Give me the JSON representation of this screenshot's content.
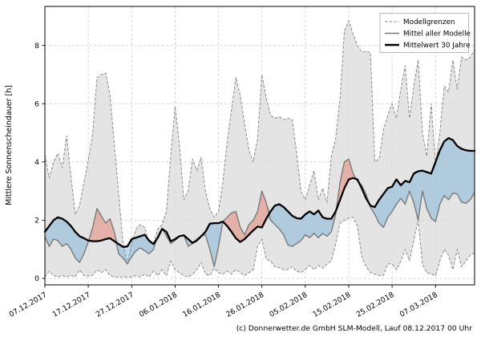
{
  "figure": {
    "footer": "(c) Donnerwetter.de GmbH SLM-Modell, Lauf 08.12.2017 00 Uhr",
    "background": "#ffffff"
  },
  "chart_data": {
    "type": "line",
    "title": "",
    "xlabel": "",
    "ylabel": "Mittlere Sonnenscheindauer [h]",
    "ylim": [
      -0.22,
      9.34
    ],
    "yticks": [
      0,
      2,
      4,
      6,
      8
    ],
    "grid": true,
    "legend_position": "upper right",
    "legend_entries": [
      "Modellgrenzen",
      "Mittel aller Modelle",
      "Mittelwert 30 Jahre"
    ],
    "x_tick_days": [
      0,
      10,
      20,
      30,
      40,
      50,
      60,
      70,
      80,
      90
    ],
    "x_tick_labels": [
      "07.12.2017",
      "17.12.2017",
      "27.12.2017",
      "06.01.2018",
      "16.01.2018",
      "26.01.2018",
      "05.02.2018",
      "15.02.2018",
      "25.02.2018",
      "07.03.2018"
    ],
    "x_unit": "Tage ab 07.12.2017 (taegliche Werte)",
    "n_points": 100,
    "series": [
      {
        "name": "Modellgrenzen (Maximum)",
        "role": "band_upper",
        "style": "dashed-gray",
        "values": [
          4.25,
          3.45,
          4.0,
          4.3,
          3.8,
          4.9,
          3.5,
          2.2,
          2.5,
          3.3,
          4.05,
          4.95,
          6.9,
          7.0,
          7.05,
          6.3,
          4.6,
          2.9,
          1.2,
          0.5,
          1.2,
          1.7,
          1.85,
          1.75,
          1.25,
          1.2,
          1.7,
          1.85,
          2.3,
          4.2,
          5.9,
          4.6,
          2.7,
          3.0,
          4.1,
          3.7,
          4.15,
          3.0,
          2.4,
          2.1,
          2.3,
          3.3,
          4.7,
          5.8,
          6.9,
          6.3,
          5.3,
          4.4,
          4.0,
          4.8,
          7.0,
          6.2,
          5.6,
          5.5,
          5.55,
          5.45,
          5.5,
          5.45,
          4.3,
          3.0,
          2.7,
          3.2,
          3.7,
          2.7,
          3.1,
          2.6,
          4.2,
          4.8,
          6.2,
          8.5,
          8.85,
          8.4,
          8.0,
          7.77,
          7.8,
          7.75,
          4.0,
          4.1,
          5.1,
          5.6,
          6.0,
          5.5,
          6.5,
          7.3,
          5.5,
          6.6,
          7.5,
          5.0,
          4.2,
          6.0,
          3.9,
          5.0,
          6.6,
          6.4,
          7.5,
          6.5,
          7.6,
          7.5,
          7.6,
          7.85
        ]
      },
      {
        "name": "Modellgrenzen (Minimum)",
        "role": "band_lower",
        "style": "dashed-gray",
        "values": [
          0.05,
          0.25,
          0.1,
          0.05,
          0.1,
          0.05,
          0.1,
          0.05,
          0.3,
          0.1,
          0.08,
          0.1,
          0.3,
          0.2,
          0.3,
          0.1,
          0.05,
          0.05,
          0.05,
          0.05,
          0.05,
          0.1,
          0.05,
          0.15,
          0.05,
          0.25,
          0.1,
          0.3,
          0.1,
          0.6,
          0.3,
          0.2,
          0.1,
          0.05,
          0.15,
          0.3,
          0.55,
          0.15,
          0.1,
          0.35,
          0.2,
          0.15,
          0.25,
          0.15,
          0.3,
          0.2,
          0.1,
          0.2,
          0.3,
          1.1,
          1.35,
          0.65,
          0.6,
          0.4,
          0.37,
          0.3,
          0.3,
          0.4,
          0.25,
          0.2,
          0.3,
          0.45,
          0.3,
          0.45,
          0.35,
          0.5,
          0.6,
          1.2,
          1.9,
          2.0,
          2.07,
          2.1,
          1.8,
          0.75,
          0.4,
          0.2,
          0.15,
          0.1,
          0.1,
          0.5,
          0.5,
          0.3,
          0.6,
          1.0,
          0.6,
          1.3,
          2.0,
          0.5,
          0.2,
          0.15,
          0.1,
          0.6,
          1.0,
          0.8,
          0.3,
          1.0,
          0.4,
          0.6,
          0.8,
          0.88
        ]
      },
      {
        "name": "Mittel aller Modelle",
        "role": "model_mean",
        "style": "solid-gray",
        "values": [
          1.44,
          1.1,
          1.35,
          1.3,
          1.1,
          1.2,
          1.0,
          0.7,
          0.55,
          0.85,
          1.25,
          1.75,
          2.4,
          2.15,
          1.9,
          2.05,
          1.6,
          0.85,
          0.7,
          0.5,
          0.75,
          0.95,
          1.05,
          0.95,
          0.85,
          1.0,
          1.45,
          1.72,
          1.45,
          1.2,
          1.3,
          1.45,
          1.48,
          1.1,
          1.2,
          1.35,
          1.45,
          1.5,
          1.0,
          0.4,
          1.1,
          1.95,
          2.1,
          2.25,
          2.3,
          1.76,
          1.5,
          1.85,
          2.0,
          2.3,
          3.0,
          2.6,
          2.0,
          1.85,
          1.7,
          1.5,
          1.15,
          1.1,
          1.2,
          1.3,
          1.5,
          1.4,
          1.55,
          1.4,
          1.55,
          1.45,
          1.6,
          2.2,
          3.3,
          4.0,
          4.1,
          3.6,
          3.35,
          3.2,
          2.9,
          2.45,
          2.2,
          1.9,
          1.75,
          2.1,
          2.3,
          2.55,
          2.75,
          2.55,
          3.0,
          2.6,
          2.0,
          3.0,
          2.4,
          2.07,
          1.95,
          2.55,
          2.85,
          2.7,
          2.93,
          2.9,
          2.62,
          2.58,
          2.7,
          2.95
        ]
      },
      {
        "name": "Mittelwert 30 Jahre",
        "role": "climate_mean",
        "style": "thick-black",
        "values": [
          1.6,
          1.8,
          2.0,
          2.1,
          2.05,
          1.95,
          1.8,
          1.6,
          1.45,
          1.38,
          1.3,
          1.28,
          1.28,
          1.3,
          1.35,
          1.38,
          1.28,
          1.18,
          1.08,
          1.1,
          1.35,
          1.4,
          1.45,
          1.5,
          1.3,
          1.18,
          1.4,
          1.7,
          1.6,
          1.28,
          1.35,
          1.45,
          1.48,
          1.35,
          1.22,
          1.3,
          1.45,
          1.6,
          1.88,
          1.9,
          1.9,
          1.95,
          1.8,
          1.6,
          1.38,
          1.25,
          1.35,
          1.5,
          1.65,
          1.78,
          1.75,
          2.05,
          2.3,
          2.5,
          2.55,
          2.45,
          2.3,
          2.15,
          2.07,
          2.05,
          2.2,
          2.3,
          2.2,
          2.33,
          2.1,
          2.05,
          2.05,
          2.3,
          2.7,
          3.1,
          3.4,
          3.45,
          3.4,
          3.1,
          2.75,
          2.5,
          2.45,
          2.7,
          2.9,
          3.1,
          3.15,
          3.4,
          3.2,
          3.35,
          3.3,
          3.6,
          3.68,
          3.7,
          3.65,
          3.6,
          4.0,
          4.4,
          4.7,
          4.82,
          4.75,
          4.55,
          4.45,
          4.4,
          4.38,
          4.38
        ]
      }
    ],
    "fills": {
      "band_color": "#dcdcdc",
      "above_normal_color": "rgba(228,115,95,0.45)",
      "below_normal_color": "rgba(105,170,215,0.42)"
    }
  }
}
